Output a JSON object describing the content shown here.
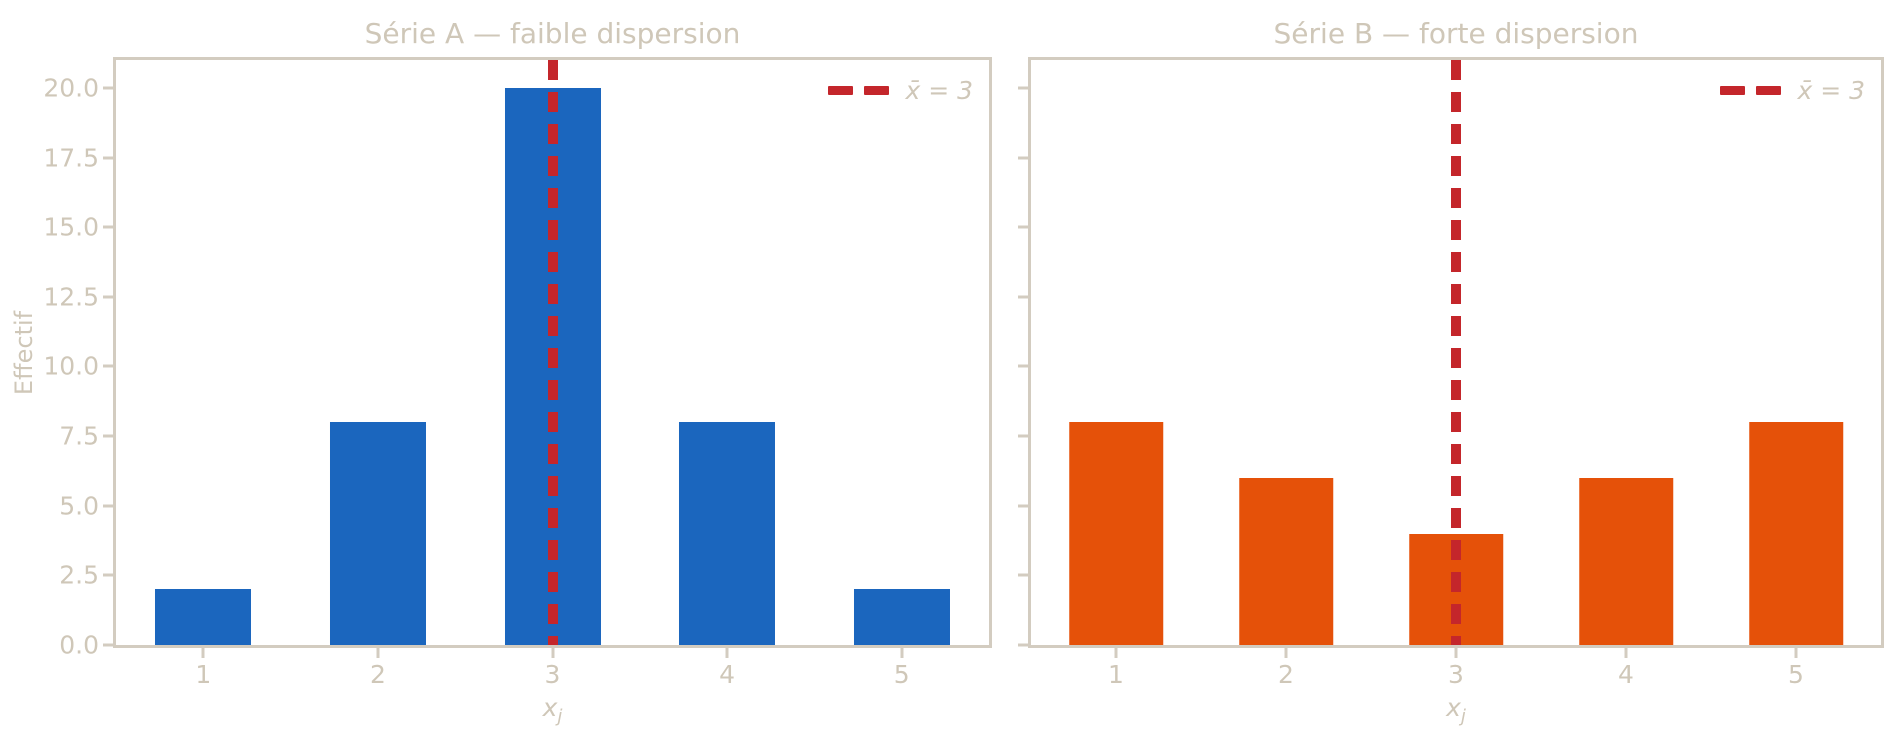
{
  "styles": {
    "text_color": "#cfc7b8",
    "spine_color": "#d3ccc0",
    "background": "#ffffff",
    "serie_a_color": "#1b66be",
    "serie_b_color": "#e55109",
    "mean_line_color": "#c4262b"
  },
  "chart_data": [
    {
      "type": "bar",
      "title": "Série A — faible dispersion",
      "categories": [
        1,
        2,
        3,
        4,
        5
      ],
      "values": [
        2,
        8,
        20,
        8,
        2
      ],
      "bar_color": "#1b66be",
      "bar_width": 0.55,
      "xlabel": {
        "base": "x",
        "sub": "j"
      },
      "ylabel": "Effectif",
      "yticks": [
        0,
        2.5,
        5,
        7.5,
        10,
        12.5,
        15,
        17.5,
        20
      ],
      "ytick_labels": [
        "0.0",
        "2.5",
        "5.0",
        "7.5",
        "10.0",
        "12.5",
        "15.0",
        "17.5",
        "20.0"
      ],
      "show_ytick_labels": true,
      "xlim": [
        0.5,
        5.5
      ],
      "ylim": [
        0,
        21
      ],
      "grid": false,
      "legend_position": "upper right",
      "mean_line": {
        "x": 3,
        "color": "#c4262b",
        "style": "dashed",
        "label": "x̄ = 3"
      }
    },
    {
      "type": "bar",
      "title": "Série B — forte dispersion",
      "categories": [
        1,
        2,
        3,
        4,
        5
      ],
      "values": [
        8,
        6,
        4,
        6,
        8
      ],
      "bar_color": "#e55109",
      "bar_width": 0.55,
      "xlabel": {
        "base": "x",
        "sub": "j"
      },
      "ylabel": "",
      "yticks": [
        0,
        2.5,
        5,
        7.5,
        10,
        12.5,
        15,
        17.5,
        20
      ],
      "ytick_labels": [
        "0.0",
        "2.5",
        "5.0",
        "7.5",
        "10.0",
        "12.5",
        "15.0",
        "17.5",
        "20.0"
      ],
      "show_ytick_labels": false,
      "xlim": [
        0.5,
        5.5
      ],
      "ylim": [
        0,
        21
      ],
      "grid": false,
      "legend_position": "upper right",
      "mean_line": {
        "x": 3,
        "color": "#c4262b",
        "style": "dashed",
        "label": "x̄ = 3"
      }
    }
  ]
}
